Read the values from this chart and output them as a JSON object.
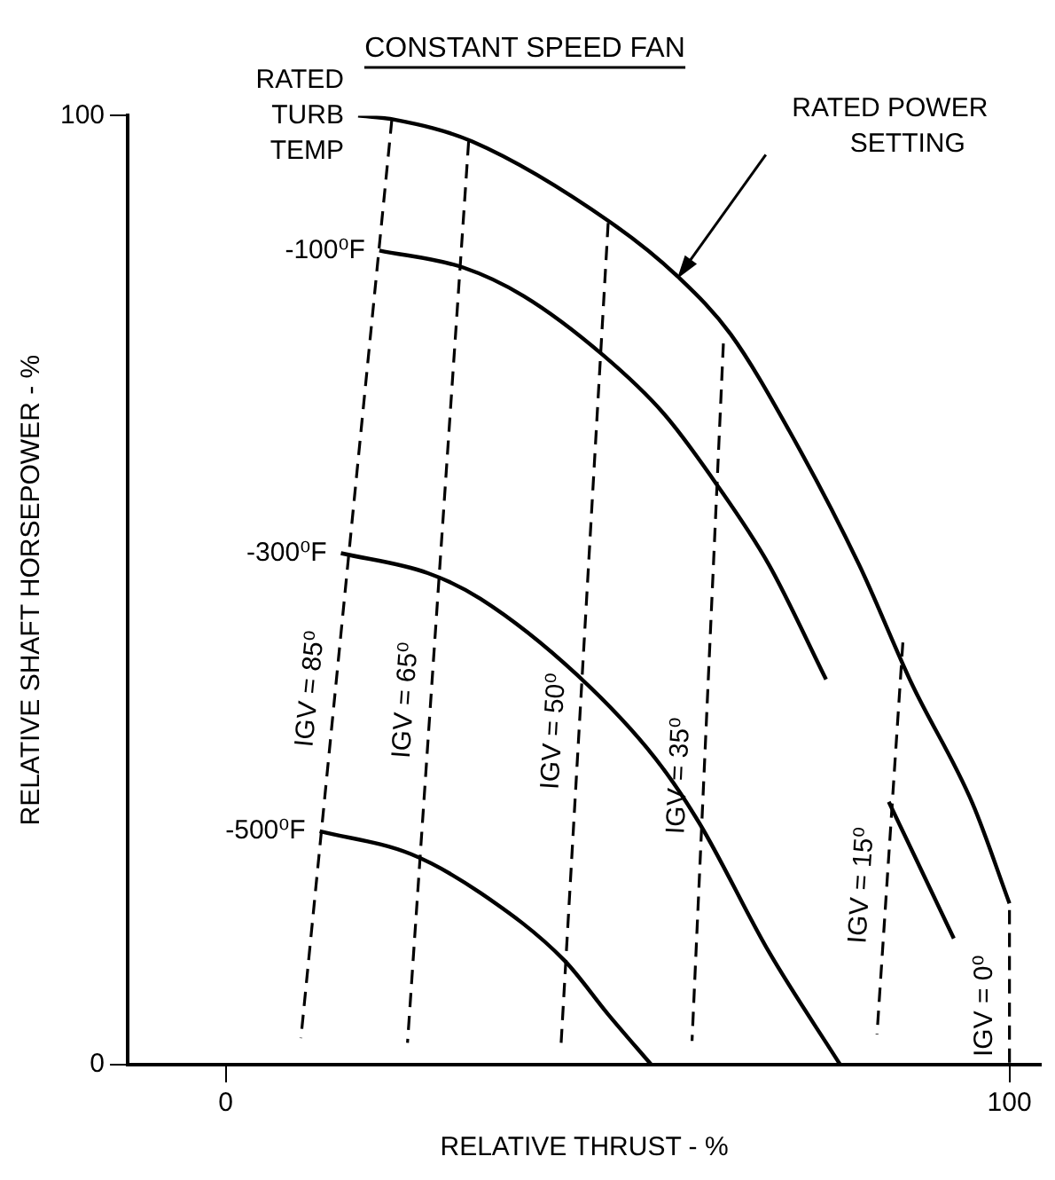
{
  "chart_data": {
    "type": "line",
    "title": "CONSTANT SPEED FAN",
    "xlabel": "RELATIVE THRUST - %",
    "ylabel": "RELATIVE SHAFT HORSEPOWER - %",
    "xlim": [
      -12.5,
      104
    ],
    "ylim": [
      0,
      100
    ],
    "xticks": [
      0,
      100
    ],
    "yticks": [
      0,
      100
    ],
    "legend": false,
    "marker": "none",
    "annotations": [
      {
        "text": "RATED POWER SETTING",
        "x": 57.6,
        "y": 82.8
      }
    ],
    "series": [
      {
        "name": "RATED TURB TEMP",
        "color": "#000000",
        "line_style": "solid",
        "x": [
          16.9,
          21.4,
          31.4,
          49.2,
          58,
          64.4,
          71.9,
          80.8,
          87.5,
          95.3,
          100
        ],
        "values": [
          100,
          99.6,
          97.3,
          88.7,
          82.8,
          77,
          66.8,
          52.7,
          40.2,
          27.5,
          17
        ]
      },
      {
        "name": "-100⁰F",
        "color": "#000000",
        "line_style": "solid",
        "x": [
          19.6,
          30.3,
          38,
          48.1,
          55.9,
          62.6,
          69.3,
          76.6,
          80,
          84.6,
          92.9
        ],
        "values": [
          85.8,
          84,
          81,
          74.8,
          68.6,
          61.2,
          52.7,
          40.6,
          null,
          27.7,
          13.3
        ]
      },
      {
        "name": "-300⁰F",
        "color": "#000000",
        "line_style": "solid",
        "x": [
          14.7,
          25.8,
          32.5,
          44.8,
          54.8,
          60.4,
          69.3,
          78.4
        ],
        "values": [
          53.9,
          51.8,
          49.1,
          41.1,
          32.3,
          25.5,
          11.9,
          0
        ]
      },
      {
        "name": "-500⁰F",
        "color": "#000000",
        "line_style": "solid",
        "x": [
          12,
          23.6,
          32.5,
          43.2,
          48.8,
          54.3
        ],
        "values": [
          24.6,
          22.2,
          18.1,
          11,
          5.3,
          0
        ]
      },
      {
        "name": "IGV = 85⁰",
        "color": "#000000",
        "line_style": "dashed",
        "x": [
          21.2,
          9.6
        ],
        "values": [
          99.6,
          2.8
        ]
      },
      {
        "name": "IGV = 65⁰",
        "color": "#000000",
        "line_style": "dashed",
        "x": [
          31,
          23.2
        ],
        "values": [
          97.3,
          2.3
        ]
      },
      {
        "name": "IGV = 50⁰",
        "color": "#000000",
        "line_style": "dashed",
        "x": [
          48.8,
          42.8
        ],
        "values": [
          88.7,
          2.3
        ]
      },
      {
        "name": "IGV = 35⁰",
        "color": "#000000",
        "line_style": "dashed",
        "x": [
          63.5,
          59.5
        ],
        "values": [
          76,
          2.5
        ]
      },
      {
        "name": "IGV = 15⁰",
        "color": "#000000",
        "line_style": "dashed",
        "x": [
          86.4,
          83.1
        ],
        "values": [
          44.5,
          3.2
        ]
      },
      {
        "name": "IGV = 0⁰",
        "color": "#000000",
        "line_style": "dashed",
        "x": [
          100,
          100
        ],
        "values": [
          16.3,
          0
        ]
      }
    ]
  }
}
